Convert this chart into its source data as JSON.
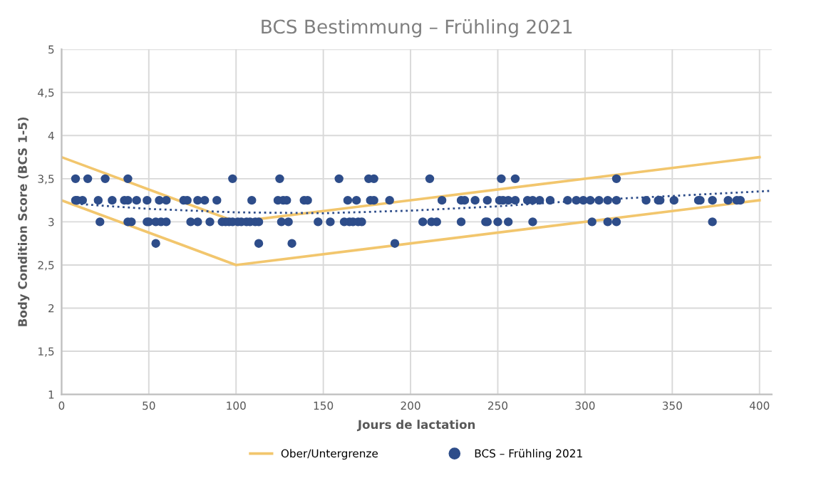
{
  "chart_data": {
    "type": "scatter",
    "title": "BCS Bestimmung – Frühling 2021",
    "xlabel": "Jours de lactation",
    "ylabel": "Body Condition Score (BCS 1-5)",
    "xlim": [
      0,
      407
    ],
    "xticks": [
      0,
      50,
      100,
      150,
      200,
      250,
      300,
      350,
      400
    ],
    "ylim": [
      1,
      5
    ],
    "yticks": [
      1,
      {
        "value": 1.5,
        "label": "1,5"
      },
      2,
      {
        "value": 2.5,
        "label": "2,5"
      },
      3,
      {
        "value": 3.5,
        "label": "3,5"
      },
      4,
      {
        "value": 4.5,
        "label": "4,5"
      },
      5
    ],
    "grid": true,
    "legend": "bottom",
    "marker": "circle",
    "series": [
      {
        "name": "Ober/Untergrenze",
        "type": "line",
        "color": "#f2c66d",
        "line_style": "solid",
        "marker": "none",
        "x": [
          0,
          100,
          400
        ],
        "values": [
          3.75,
          3.0,
          3.75
        ]
      },
      {
        "type": "line",
        "color": "#f2c66d",
        "line_style": "solid",
        "marker": "none",
        "x": [
          0,
          100,
          400
        ],
        "values": [
          3.25,
          2.5,
          3.25
        ]
      },
      {
        "type": "line",
        "color": "#2e4d8a",
        "line_style": "dotted",
        "marker": "none",
        "x": [
          8,
          50,
          100,
          150,
          200,
          250,
          300,
          350,
          407
        ],
        "values": [
          3.21,
          3.15,
          3.11,
          3.1,
          3.13,
          3.18,
          3.25,
          3.3,
          3.36
        ]
      },
      {
        "name": "BCS – Frühling 2021",
        "color": "#2e4d8a",
        "x": [
          8,
          15,
          25,
          38,
          98,
          125,
          159,
          176,
          179,
          211,
          252,
          260,
          318,
          8,
          9,
          12,
          21,
          29,
          36,
          38,
          43,
          49,
          56,
          60,
          70,
          72,
          78,
          82,
          89,
          109,
          124,
          127,
          129,
          139,
          141,
          164,
          169,
          177,
          179,
          188,
          218,
          229,
          231,
          237,
          244,
          251,
          253,
          256,
          260,
          267,
          270,
          274,
          280,
          290,
          295,
          299,
          303,
          308,
          313,
          318,
          335,
          342,
          343,
          351,
          365,
          366,
          373,
          382,
          387,
          389,
          22,
          38,
          40,
          49,
          50,
          54,
          57,
          60,
          74,
          78,
          85,
          92,
          94,
          96,
          98,
          101,
          103,
          106,
          108,
          111,
          113,
          126,
          130,
          147,
          154,
          162,
          165,
          167,
          170,
          172,
          207,
          212,
          215,
          229,
          243,
          244,
          250,
          256,
          270,
          304,
          313,
          318,
          373,
          54,
          113,
          132,
          191
        ],
        "values": [
          3.5,
          3.5,
          3.5,
          3.5,
          3.5,
          3.5,
          3.5,
          3.5,
          3.5,
          3.5,
          3.5,
          3.5,
          3.5,
          3.25,
          3.25,
          3.25,
          3.25,
          3.25,
          3.25,
          3.25,
          3.25,
          3.25,
          3.25,
          3.25,
          3.25,
          3.25,
          3.25,
          3.25,
          3.25,
          3.25,
          3.25,
          3.25,
          3.25,
          3.25,
          3.25,
          3.25,
          3.25,
          3.25,
          3.25,
          3.25,
          3.25,
          3.25,
          3.25,
          3.25,
          3.25,
          3.25,
          3.25,
          3.25,
          3.25,
          3.25,
          3.25,
          3.25,
          3.25,
          3.25,
          3.25,
          3.25,
          3.25,
          3.25,
          3.25,
          3.25,
          3.25,
          3.25,
          3.25,
          3.25,
          3.25,
          3.25,
          3.25,
          3.25,
          3.25,
          3.25,
          3,
          3,
          3,
          3,
          3,
          3,
          3,
          3,
          3,
          3,
          3,
          3,
          3,
          3,
          3,
          3,
          3,
          3,
          3,
          3,
          3,
          3,
          3,
          3,
          3,
          3,
          3,
          3,
          3,
          3,
          3,
          3,
          3,
          3,
          3,
          3,
          3,
          3,
          3,
          3,
          3,
          3,
          3,
          2.75,
          2.75,
          2.75,
          2.75
        ]
      }
    ]
  }
}
